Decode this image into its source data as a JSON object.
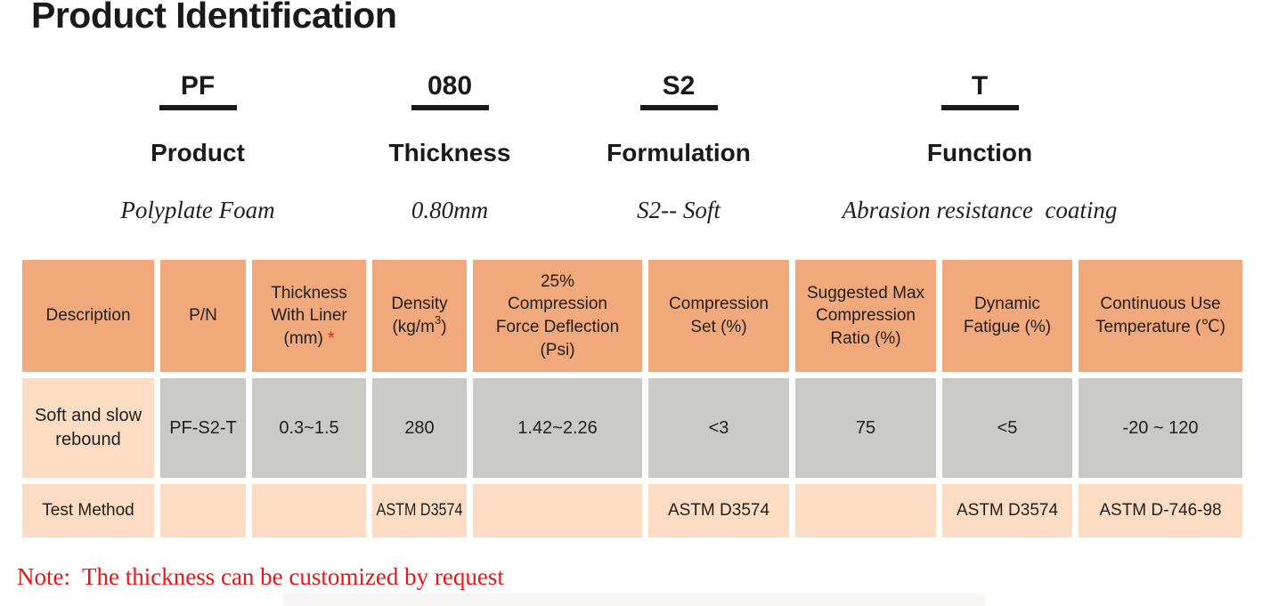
{
  "page": {
    "title": "Product Identification"
  },
  "codes": {
    "items": [
      {
        "code": "PF",
        "label": "Product",
        "description": "Polyplate Foam"
      },
      {
        "code": "080",
        "label": "Thickness",
        "description": "0.80mm"
      },
      {
        "code": "S2",
        "label": "Formulation",
        "description": "S2-- Soft"
      },
      {
        "code": "T",
        "label": "Function",
        "description": "Abrasion resistance  coating"
      }
    ]
  },
  "table": {
    "headers": [
      {
        "lines": [
          "Description"
        ]
      },
      {
        "lines": [
          "P/N"
        ]
      },
      {
        "lines": [
          "Thickness",
          "With Liner",
          "(mm)"
        ],
        "footnote_marker": "*"
      },
      {
        "lines": [
          "Density"
        ],
        "unit_prefix": "(kg/m",
        "unit_sup": "3",
        "unit_suffix": ")"
      },
      {
        "lines": [
          "25%",
          "Compression",
          "Force Deflection",
          "(Psi)"
        ]
      },
      {
        "lines": [
          "Compression",
          "Set (%)"
        ]
      },
      {
        "lines": [
          "Suggested Max",
          "Compression",
          "Ratio (%)"
        ]
      },
      {
        "lines": [
          "Dynamic",
          "Fatigue (%)"
        ]
      },
      {
        "lines": [
          "Continuous Use",
          "Temperature (℃)"
        ]
      }
    ],
    "data_row": [
      "Soft and slow rebound",
      "PF-S2-T",
      "0.3~1.5",
      "280",
      "1.42~2.26",
      "<3",
      "75",
      "<5",
      "-20 ~ 120"
    ],
    "test_row": [
      "Test Method",
      "",
      "",
      "ASTM D3574",
      "",
      "ASTM D3574",
      "",
      "ASTM D3574",
      "ASTM D-746-98"
    ]
  },
  "note": {
    "text": "Note:  The thickness can be customized by request"
  },
  "colors": {
    "header_orange": "#f1a87a",
    "cell_gray": "#c9c9c5",
    "cell_peach": "#fcddc3",
    "note_red": "#e81616",
    "text_black": "#1a1a1a"
  }
}
